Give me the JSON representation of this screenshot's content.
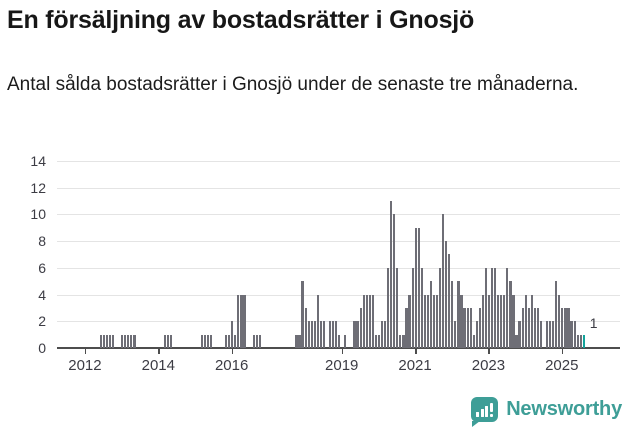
{
  "header": {
    "title": "En försäljning av bostadsrätter i Gnosjö",
    "subtitle": "Antal sålda bostadsrätter i Gnosjö under de senaste tre månaderna."
  },
  "chart_data": {
    "type": "bar",
    "title": "En försäljning av bostadsrätter i Gnosjö",
    "description": "Antal sålda bostadsrätter i Gnosjö under de senaste tre månaderna, rullande per månad",
    "start": {
      "year": 2011,
      "month": 5
    },
    "end": {
      "year": 2025,
      "month": 8
    },
    "values": [
      0,
      0,
      0,
      0,
      0,
      0,
      0,
      0,
      0,
      0,
      0,
      0,
      0,
      1,
      1,
      1,
      1,
      1,
      0,
      0,
      1,
      1,
      1,
      1,
      1,
      0,
      0,
      0,
      0,
      0,
      0,
      0,
      0,
      0,
      1,
      1,
      1,
      0,
      0,
      0,
      0,
      0,
      0,
      0,
      0,
      0,
      1,
      1,
      1,
      1,
      0,
      0,
      0,
      0,
      1,
      1,
      2,
      1,
      4,
      4,
      4,
      0,
      0,
      1,
      1,
      1,
      0,
      0,
      0,
      0,
      0,
      0,
      0,
      0,
      0,
      0,
      0,
      1,
      1,
      5,
      3,
      2,
      2,
      2,
      4,
      2,
      2,
      0,
      2,
      2,
      2,
      1,
      0,
      1,
      0,
      0,
      2,
      2,
      3,
      4,
      4,
      4,
      4,
      1,
      1,
      2,
      2,
      6,
      11,
      10,
      6,
      1,
      1,
      3,
      4,
      6,
      9,
      9,
      6,
      4,
      4,
      5,
      4,
      4,
      6,
      10,
      8,
      7,
      5,
      2,
      5,
      4,
      3,
      3,
      3,
      1,
      2,
      3,
      4,
      6,
      4,
      6,
      6,
      4,
      4,
      4,
      6,
      5,
      4,
      1,
      2,
      3,
      4,
      3,
      4,
      3,
      3,
      2,
      0,
      2,
      2,
      2,
      5,
      4,
      3,
      3,
      3,
      2,
      2,
      1,
      1,
      1
    ],
    "ylim": [
      0,
      14
    ],
    "y_ticks": [
      0,
      2,
      4,
      6,
      8,
      10,
      12,
      14
    ],
    "x_ticks": [
      {
        "label": "2012",
        "month_index": 8
      },
      {
        "label": "2014",
        "month_index": 32
      },
      {
        "label": "2016",
        "month_index": 56
      },
      {
        "label": "2019",
        "month_index": 92
      },
      {
        "label": "2021",
        "month_index": 116
      },
      {
        "label": "2023",
        "month_index": 140
      },
      {
        "label": "2025",
        "month_index": 164
      }
    ],
    "grid": true,
    "legend": "none",
    "highlight_last": true,
    "last_value_label": "1",
    "colors": {
      "bar": "#6e6e76",
      "highlight": "#12a39b",
      "grid": "#e4e4e4",
      "axis": "#4d4d4d",
      "text": "#3c3c44"
    }
  },
  "footer": {
    "brand": "Newsworthy"
  }
}
